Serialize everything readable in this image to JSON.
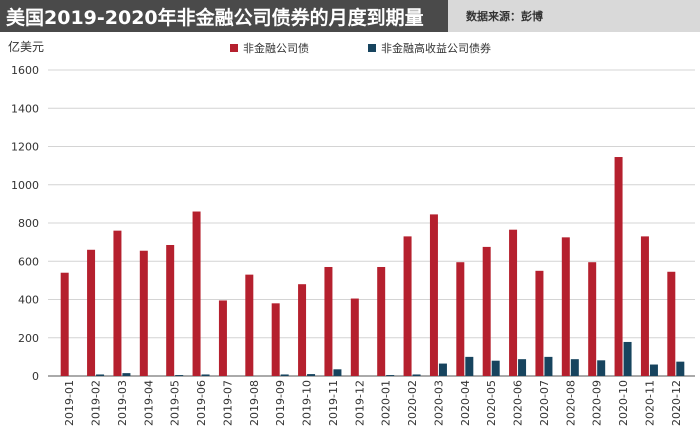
{
  "header": {
    "title": "美国2019-2020年非金融公司债券的月度到期量",
    "source": "数据来源：彭博"
  },
  "chart_data": {
    "type": "bar",
    "ylabel": "亿美元",
    "ylim": [
      0,
      1600
    ],
    "yticks": [
      "0",
      "200",
      "400",
      "600",
      "800",
      "1000",
      "1200",
      "1400",
      "1600"
    ],
    "grid": true,
    "legend_placement": "top-center",
    "categories": [
      "2019-01",
      "2019-02",
      "2019-03",
      "2019-04",
      "2019-05",
      "2019-06",
      "2019-07",
      "2019-08",
      "2019-09",
      "2019-10",
      "2019-11",
      "2019-12",
      "2020-01",
      "2020-02",
      "2020-03",
      "2020-04",
      "2020-05",
      "2020-06",
      "2020-07",
      "2020-08",
      "2020-09",
      "2020-10",
      "2020-11",
      "2020-12"
    ],
    "series": [
      {
        "name": "非金融公司债",
        "color": "#b5202e",
        "values": [
          540,
          660,
          760,
          655,
          685,
          860,
          395,
          530,
          380,
          480,
          570,
          405,
          570,
          730,
          845,
          595,
          675,
          765,
          550,
          725,
          595,
          1145,
          730,
          545
        ]
      },
      {
        "name": "非金融高收益公司债券",
        "color": "#17445e",
        "values": [
          0,
          8,
          15,
          0,
          5,
          8,
          0,
          0,
          8,
          10,
          35,
          0,
          5,
          8,
          65,
          100,
          80,
          88,
          100,
          88,
          82,
          178,
          60,
          75
        ]
      }
    ]
  }
}
